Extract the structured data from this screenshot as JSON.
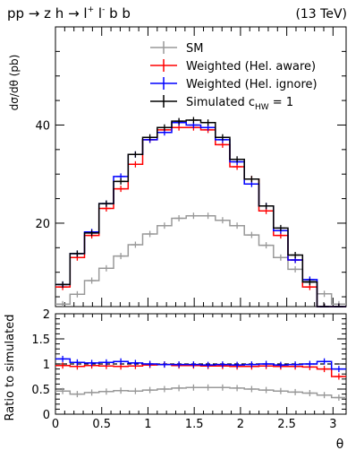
{
  "chart_data": [
    {
      "type": "line",
      "drawstyle": "step-histogram",
      "title_left": {
        "base": "pp → z h → l",
        "sup1": "+",
        "mid": " l",
        "sup2": "-",
        "tail": " b b"
      },
      "title_right": "(13 TeV)",
      "ylabel": "dσ/dθ (pb)",
      "xlim": [
        0,
        3.1416
      ],
      "ylim": [
        3,
        60
      ],
      "ytick_labels": [
        "20",
        "40"
      ],
      "yticks": [
        20,
        40
      ],
      "x_edges": [
        0.0,
        0.1571,
        0.3142,
        0.4712,
        0.6283,
        0.7854,
        0.9425,
        1.0996,
        1.2566,
        1.4137,
        1.5708,
        1.7279,
        1.885,
        2.042,
        2.1991,
        2.3562,
        2.5133,
        2.6704,
        2.8274,
        2.9845,
        3.1416
      ],
      "legend_position": "top-right",
      "series": [
        {
          "name": "SM",
          "color": "#999999",
          "values": [
            3.5,
            5.5,
            8.3,
            10.8,
            13.3,
            15.6,
            17.8,
            19.5,
            21.0,
            21.5,
            21.5,
            20.6,
            19.5,
            17.6,
            15.5,
            13.0,
            10.6,
            8.2,
            5.6,
            3.5
          ]
        },
        {
          "name": "Weighted (Hel. aware)",
          "color": "#ff0000",
          "values": [
            7.0,
            13.0,
            17.5,
            23.0,
            27.0,
            32.0,
            37.0,
            39.0,
            39.5,
            39.5,
            39.0,
            36.0,
            31.5,
            29.0,
            22.5,
            17.5,
            12.5,
            7.0,
            3.0,
            3.0
          ]
        },
        {
          "name": "Weighted (Hel. ignore)",
          "color": "#0000ff",
          "values": [
            7.5,
            13.8,
            18.2,
            24.0,
            29.5,
            34.0,
            37.0,
            38.5,
            40.5,
            40.0,
            39.5,
            37.0,
            32.5,
            28.0,
            23.5,
            18.5,
            12.5,
            8.5,
            3.0,
            3.0
          ]
        },
        {
          "name": "Simulated  c",
          "name_sub": "HW",
          "name_tail": " = 1",
          "color": "#000000",
          "values": [
            7.5,
            13.8,
            18.0,
            24.0,
            28.5,
            34.0,
            37.5,
            39.5,
            40.8,
            41.0,
            40.5,
            37.5,
            33.0,
            29.0,
            23.5,
            19.0,
            13.5,
            8.0,
            3.0,
            3.0
          ]
        }
      ]
    },
    {
      "type": "line",
      "drawstyle": "step-histogram",
      "ylabel": "Ratio to simulated",
      "xlabel": "θ",
      "xlim": [
        0,
        3.1416
      ],
      "ylim": [
        0,
        2
      ],
      "yticks": [
        0,
        0.5,
        1,
        1.5,
        2
      ],
      "ytick_labels": [
        "0",
        "0.5",
        "1",
        "1.5",
        "2"
      ],
      "xticks": [
        0,
        0.5,
        1,
        1.5,
        2,
        2.5,
        3
      ],
      "xtick_labels": [
        "0",
        "0.5",
        "1",
        "1.5",
        "2",
        "2.5",
        "3"
      ],
      "reference_line": 1,
      "series": [
        {
          "name": "SM",
          "color": "#999999",
          "values": [
            0.46,
            0.4,
            0.43,
            0.45,
            0.47,
            0.46,
            0.48,
            0.5,
            0.52,
            0.53,
            0.53,
            0.53,
            0.52,
            0.5,
            0.48,
            0.46,
            0.44,
            0.42,
            0.38,
            0.33
          ]
        },
        {
          "name": "Weighted (Hel. aware)",
          "color": "#ff0000",
          "values": [
            0.97,
            0.95,
            0.97,
            0.96,
            0.95,
            0.96,
            0.98,
            0.99,
            0.97,
            0.97,
            0.96,
            0.96,
            0.95,
            0.95,
            0.96,
            0.95,
            0.95,
            0.94,
            0.9,
            0.75
          ]
        },
        {
          "name": "Weighted (Hel. ignore)",
          "color": "#0000ff",
          "values": [
            1.1,
            1.03,
            1.02,
            1.03,
            1.05,
            1.02,
            1.0,
            0.99,
            0.99,
            0.99,
            0.98,
            0.99,
            0.98,
            0.99,
            1.0,
            0.98,
            0.99,
            1.0,
            1.05,
            0.9
          ]
        }
      ]
    }
  ]
}
